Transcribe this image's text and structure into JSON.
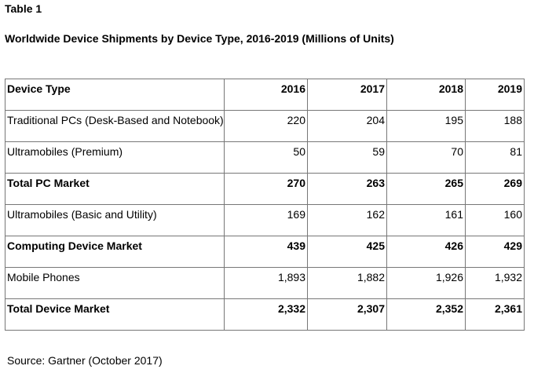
{
  "header": {
    "label": "Table 1",
    "title": "Worldwide Device Shipments by Device Type, 2016-2019 (Millions of Units)"
  },
  "table": {
    "columns": [
      "Device Type",
      "2016",
      "2017",
      "2018",
      "2019"
    ],
    "rows": [
      {
        "label": "Traditional PCs (Desk-Based and Notebook)",
        "values": [
          "220",
          "204",
          "195",
          "188"
        ],
        "bold": false
      },
      {
        "label": "Ultramobiles (Premium)",
        "values": [
          "50",
          "59",
          "70",
          "81"
        ],
        "bold": false
      },
      {
        "label": "Total PC Market",
        "values": [
          "270",
          "263",
          "265",
          "269"
        ],
        "bold": true
      },
      {
        "label": "Ultramobiles (Basic and Utility)",
        "values": [
          "169",
          "162",
          "161",
          "160"
        ],
        "bold": false
      },
      {
        "label": "Computing Device Market",
        "values": [
          "439",
          "425",
          "426",
          "429"
        ],
        "bold": true
      },
      {
        "label": "Mobile Phones",
        "values": [
          "1,893",
          "1,882",
          "1,926",
          "1,932"
        ],
        "bold": false
      },
      {
        "label": "Total Device Market",
        "values": [
          "2,332",
          "2,307",
          "2,352",
          "2,361"
        ],
        "bold": true
      }
    ]
  },
  "footer": {
    "source": "Source: Gartner (October 2017)"
  }
}
